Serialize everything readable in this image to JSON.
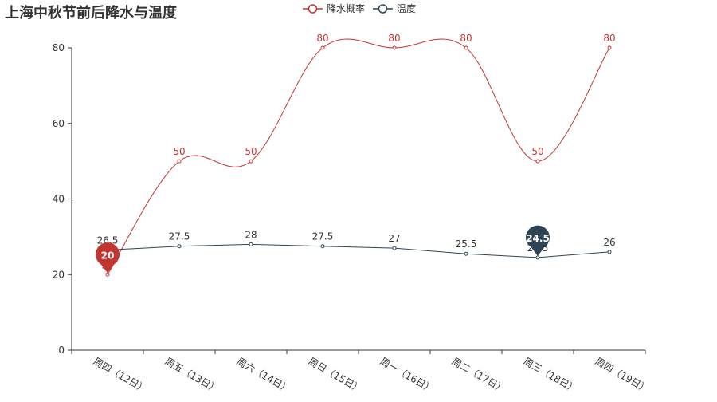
{
  "chart_data": {
    "type": "line",
    "title": "上海中秋节前后降水与温度",
    "categories": [
      "周四（12日）",
      "周五（13日）",
      "周六（14日）",
      "周日（15日）",
      "周一（16日）",
      "周二（17日）",
      "周三（18日）",
      "周四（19日）"
    ],
    "series": [
      {
        "name": "降水概率",
        "values": [
          20,
          50,
          50,
          80,
          80,
          80,
          50,
          80
        ],
        "color": "#c23531",
        "smooth": true,
        "marker_point": {
          "index": 0,
          "value": 20
        }
      },
      {
        "name": "温度",
        "values": [
          26.5,
          27.5,
          28,
          27.5,
          27,
          25.5,
          24.5,
          26
        ],
        "color": "#2f4554",
        "smooth": false,
        "marker_point": {
          "index": 6,
          "value": 24.5
        }
      }
    ],
    "yticks": [
      0,
      20,
      40,
      60,
      80
    ],
    "ylim": [
      0,
      80
    ],
    "grid": false,
    "legend_position": "top-center",
    "xlabel_rotation_deg": 30
  }
}
